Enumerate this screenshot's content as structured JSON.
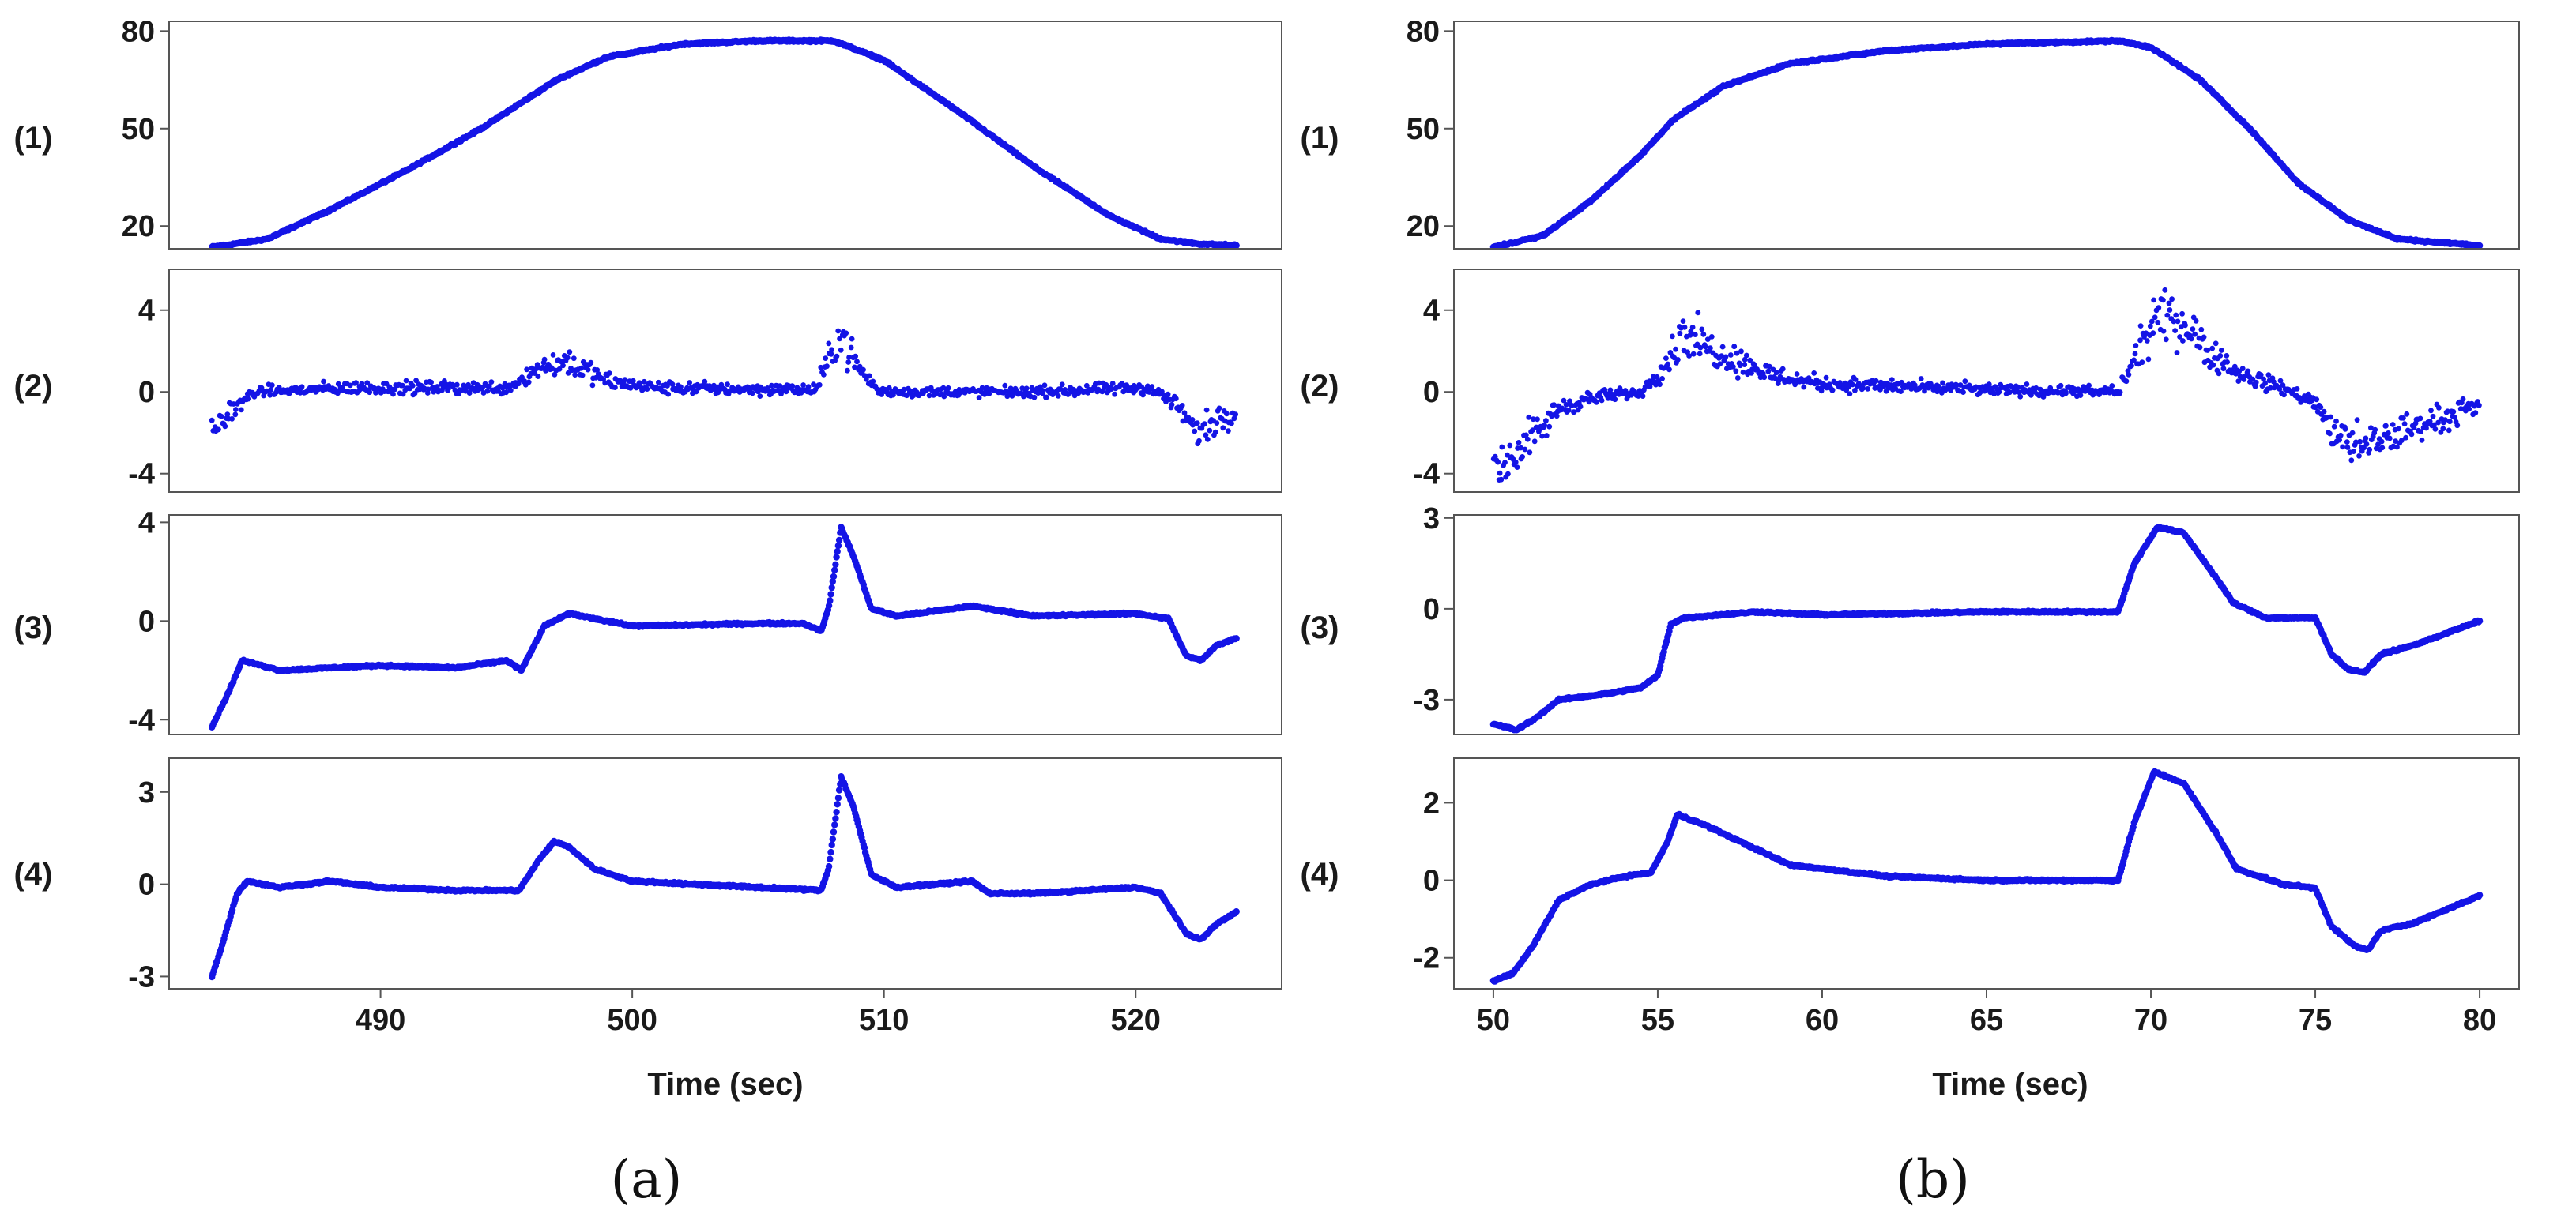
{
  "figure": {
    "captions": [
      "(a)",
      "(b)"
    ]
  },
  "style": {
    "marker_color": "#1414e6",
    "frame_color": "#555555"
  },
  "chart_data": [
    {
      "id": "a",
      "type": "scatter",
      "caption": "(a)",
      "xlabel": "Time (sec)",
      "xlim": [
        481.6,
        525.8
      ],
      "xticks": [
        490,
        500,
        510,
        520
      ],
      "panels": [
        {
          "label": "(1)",
          "ylim": [
            13,
            83
          ],
          "yticks": [
            20,
            50,
            80
          ],
          "style": "dense",
          "keypoints": [
            [
              483.3,
              13.5
            ],
            [
              485.5,
              16
            ],
            [
              488,
              25
            ],
            [
              491,
              37
            ],
            [
              494,
              50
            ],
            [
              497,
              65
            ],
            [
              499,
              72
            ],
            [
              502,
              76
            ],
            [
              505,
              77
            ],
            [
              508,
              77
            ],
            [
              510,
              71
            ],
            [
              513,
              55
            ],
            [
              516,
              38
            ],
            [
              519,
              23
            ],
            [
              521,
              16
            ],
            [
              522.5,
              14.5
            ],
            [
              524,
              14
            ]
          ]
        },
        {
          "label": "(2)",
          "ylim": [
            -4.9,
            6.0
          ],
          "yticks": [
            -4,
            0,
            4
          ],
          "style": "scatter",
          "keypoints": [
            [
              483.3,
              -2.0
            ],
            [
              484.0,
              -1.0
            ],
            [
              485,
              0
            ],
            [
              489,
              0.2
            ],
            [
              495,
              0.2
            ],
            [
              496.5,
              1.3
            ],
            [
              497.5,
              1.5
            ],
            [
              499,
              0.5
            ],
            [
              501,
              0.2
            ],
            [
              507.3,
              0.1
            ],
            [
              508.3,
              3.0
            ],
            [
              508.8,
              1.5
            ],
            [
              509.8,
              0
            ],
            [
              516,
              0
            ],
            [
              520.5,
              0.2
            ],
            [
              521.5,
              -0.5
            ],
            [
              522.5,
              -2.0
            ],
            [
              523.5,
              -1.2
            ],
            [
              524,
              -1.0
            ]
          ]
        },
        {
          "label": "(3)",
          "ylim": [
            -4.6,
            4.3
          ],
          "yticks": [
            -4,
            0,
            4
          ],
          "style": "dense",
          "keypoints": [
            [
              483.3,
              -4.3
            ],
            [
              484,
              -2.8
            ],
            [
              484.5,
              -1.6
            ],
            [
              486,
              -2.0
            ],
            [
              490,
              -1.8
            ],
            [
              493,
              -1.9
            ],
            [
              495,
              -1.6
            ],
            [
              495.6,
              -2.0
            ],
            [
              496.5,
              -0.2
            ],
            [
              497.5,
              0.3
            ],
            [
              500,
              -0.2
            ],
            [
              505,
              -0.1
            ],
            [
              506.8,
              -0.1
            ],
            [
              507.5,
              -0.4
            ],
            [
              507.8,
              0.5
            ],
            [
              508.3,
              3.8
            ],
            [
              508.8,
              2.6
            ],
            [
              509.5,
              0.5
            ],
            [
              510.5,
              0.2
            ],
            [
              513.5,
              0.6
            ],
            [
              516,
              0.2
            ],
            [
              520,
              0.3
            ],
            [
              521.3,
              0.1
            ],
            [
              522,
              -1.4
            ],
            [
              522.6,
              -1.6
            ],
            [
              523.2,
              -1.0
            ],
            [
              524,
              -0.7
            ]
          ]
        },
        {
          "label": "(4)",
          "ylim": [
            -3.4,
            4.1
          ],
          "yticks": [
            -3,
            0,
            3
          ],
          "style": "dense",
          "keypoints": [
            [
              483.3,
              -3.0
            ],
            [
              483.7,
              -2.0
            ],
            [
              484.3,
              -0.3
            ],
            [
              484.7,
              0.1
            ],
            [
              486,
              -0.1
            ],
            [
              488,
              0.1
            ],
            [
              490,
              -0.1
            ],
            [
              493,
              -0.2
            ],
            [
              495.5,
              -0.2
            ],
            [
              496.3,
              0.8
            ],
            [
              496.9,
              1.4
            ],
            [
              497.5,
              1.2
            ],
            [
              498.5,
              0.5
            ],
            [
              500,
              0.1
            ],
            [
              505,
              -0.1
            ],
            [
              507.5,
              -0.2
            ],
            [
              507.8,
              0.5
            ],
            [
              508.3,
              3.5
            ],
            [
              508.8,
              2.5
            ],
            [
              509.5,
              0.3
            ],
            [
              510.5,
              -0.1
            ],
            [
              513.5,
              0.1
            ],
            [
              514.2,
              -0.3
            ],
            [
              516,
              -0.3
            ],
            [
              520,
              -0.1
            ],
            [
              521,
              -0.3
            ],
            [
              522,
              -1.6
            ],
            [
              522.6,
              -1.8
            ],
            [
              523.2,
              -1.3
            ],
            [
              524,
              -0.9
            ]
          ]
        }
      ]
    },
    {
      "id": "b",
      "type": "scatter",
      "caption": "(b)",
      "xlabel": "Time (sec)",
      "xlim": [
        48.8,
        81.2
      ],
      "xticks": [
        50,
        55,
        60,
        65,
        70,
        75,
        80
      ],
      "panels": [
        {
          "label": "(1)",
          "ylim": [
            13,
            83
          ],
          "yticks": [
            20,
            50,
            80
          ],
          "style": "dense",
          "keypoints": [
            [
              50,
              13.5
            ],
            [
              51.5,
              17
            ],
            [
              53,
              28
            ],
            [
              54.5,
              42
            ],
            [
              55.5,
              53
            ],
            [
              57,
              63
            ],
            [
              59,
              70
            ],
            [
              62,
              74
            ],
            [
              65,
              76
            ],
            [
              69,
              77
            ],
            [
              70,
              75
            ],
            [
              71.5,
              65
            ],
            [
              73,
              50
            ],
            [
              74.5,
              33
            ],
            [
              76,
              22
            ],
            [
              77.5,
              16
            ],
            [
              80,
              14
            ]
          ]
        },
        {
          "label": "(2)",
          "ylim": [
            -4.9,
            6.0
          ],
          "yticks": [
            -4,
            0,
            4
          ],
          "style": "scatter",
          "keypoints": [
            [
              50,
              -3.8
            ],
            [
              51,
              -2.6
            ],
            [
              52,
              -0.8
            ],
            [
              53,
              -0.3
            ],
            [
              54.5,
              0
            ],
            [
              55.3,
              1.5
            ],
            [
              55.8,
              3.0
            ],
            [
              56.5,
              2.2
            ],
            [
              57.5,
              1.5
            ],
            [
              58.5,
              0.8
            ],
            [
              60,
              0.4
            ],
            [
              65,
              0.1
            ],
            [
              69,
              0
            ],
            [
              69.5,
              1.5
            ],
            [
              70,
              3.2
            ],
            [
              70.8,
              3.8
            ],
            [
              71.5,
              2.5
            ],
            [
              72.5,
              1.0
            ],
            [
              74,
              0.2
            ],
            [
              75,
              -0.5
            ],
            [
              75.5,
              -2.0
            ],
            [
              76.5,
              -2.8
            ],
            [
              77.5,
              -2.0
            ],
            [
              79,
              -1.2
            ],
            [
              80,
              -0.7
            ]
          ]
        },
        {
          "label": "(3)",
          "ylim": [
            -4.15,
            3.1
          ],
          "yticks": [
            -3,
            0,
            3
          ],
          "style": "dense",
          "keypoints": [
            [
              50,
              -3.8
            ],
            [
              50.7,
              -4.0
            ],
            [
              51.3,
              -3.6
            ],
            [
              52,
              -3.0
            ],
            [
              53.5,
              -2.8
            ],
            [
              54.5,
              -2.6
            ],
            [
              55,
              -2.2
            ],
            [
              55.4,
              -0.5
            ],
            [
              55.8,
              -0.3
            ],
            [
              58,
              -0.1
            ],
            [
              60,
              -0.2
            ],
            [
              65,
              -0.1
            ],
            [
              69,
              -0.1
            ],
            [
              69.5,
              1.5
            ],
            [
              70.2,
              2.7
            ],
            [
              71,
              2.5
            ],
            [
              72,
              1.0
            ],
            [
              72.5,
              0.2
            ],
            [
              73.5,
              -0.3
            ],
            [
              75,
              -0.3
            ],
            [
              75.5,
              -1.5
            ],
            [
              76,
              -2.0
            ],
            [
              76.5,
              -2.1
            ],
            [
              77,
              -1.5
            ],
            [
              78,
              -1.2
            ],
            [
              80,
              -0.4
            ]
          ]
        },
        {
          "label": "(4)",
          "ylim": [
            -2.8,
            3.15
          ],
          "yticks": [
            -2,
            0,
            2
          ],
          "style": "dense",
          "keypoints": [
            [
              50,
              -2.6
            ],
            [
              50.6,
              -2.4
            ],
            [
              51.2,
              -1.7
            ],
            [
              52,
              -0.5
            ],
            [
              53,
              -0.1
            ],
            [
              54,
              0.1
            ],
            [
              54.8,
              0.2
            ],
            [
              55.3,
              1.0
            ],
            [
              55.6,
              1.7
            ],
            [
              56.5,
              1.4
            ],
            [
              57.5,
              1.0
            ],
            [
              59,
              0.4
            ],
            [
              62,
              0.1
            ],
            [
              65,
              0
            ],
            [
              68,
              0
            ],
            [
              69,
              0
            ],
            [
              69.5,
              1.5
            ],
            [
              70.1,
              2.8
            ],
            [
              71,
              2.5
            ],
            [
              72,
              1.2
            ],
            [
              72.6,
              0.3
            ],
            [
              74,
              -0.1
            ],
            [
              75,
              -0.2
            ],
            [
              75.5,
              -1.2
            ],
            [
              76.2,
              -1.7
            ],
            [
              76.6,
              -1.8
            ],
            [
              77,
              -1.3
            ],
            [
              78,
              -1.1
            ],
            [
              80,
              -0.4
            ]
          ]
        }
      ]
    }
  ]
}
